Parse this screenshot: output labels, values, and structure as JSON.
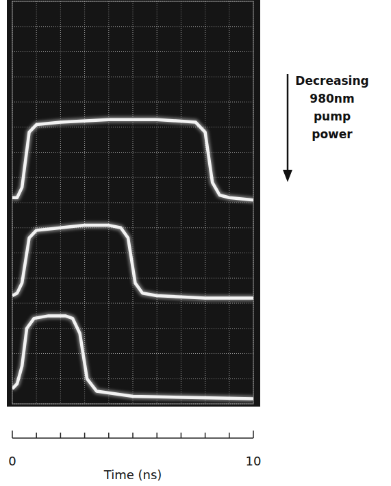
{
  "chart_data": {
    "type": "line",
    "xlabel": "Time (ns)",
    "annotation": "Decreasing 980nm pump power",
    "xlim": [
      0,
      10
    ],
    "xticks": [
      0,
      10
    ],
    "xminor": [
      1,
      2,
      3,
      4,
      5,
      6,
      7,
      8,
      9
    ],
    "ylim": [
      0,
      16
    ],
    "yticks": [
      0,
      1,
      2,
      3,
      4,
      5,
      6,
      7,
      8,
      9,
      10,
      11,
      12,
      13,
      14,
      15,
      16
    ],
    "tick_labels": "x",
    "grid": true,
    "series": [
      {
        "color": "#f2f2f2",
        "x": [
          0,
          0.2,
          0.4,
          0.7,
          1.0,
          2,
          4,
          6,
          7.6,
          8.0,
          8.3,
          8.6,
          9,
          10
        ],
        "values": [
          8.2,
          8.2,
          8.6,
          10.8,
          11.1,
          11.2,
          11.3,
          11.3,
          11.2,
          10.8,
          8.8,
          8.3,
          8.2,
          8.1
        ]
      },
      {
        "color": "#f2f2f2",
        "x": [
          0,
          0.2,
          0.4,
          0.7,
          1.0,
          2,
          3,
          4,
          4.5,
          4.8,
          5.1,
          5.4,
          6,
          8,
          10
        ],
        "values": [
          4.3,
          4.4,
          4.8,
          6.6,
          6.9,
          7.0,
          7.1,
          7.1,
          7.0,
          6.6,
          4.8,
          4.4,
          4.3,
          4.2,
          4.2
        ]
      },
      {
        "color": "#f2f2f2",
        "x": [
          0,
          0.2,
          0.4,
          0.6,
          0.9,
          1.5,
          2.2,
          2.5,
          2.8,
          3.1,
          3.5,
          5,
          10
        ],
        "values": [
          0.6,
          0.8,
          1.5,
          3.0,
          3.4,
          3.5,
          3.5,
          3.4,
          2.8,
          1.0,
          0.5,
          0.3,
          0.2
        ]
      }
    ]
  }
}
